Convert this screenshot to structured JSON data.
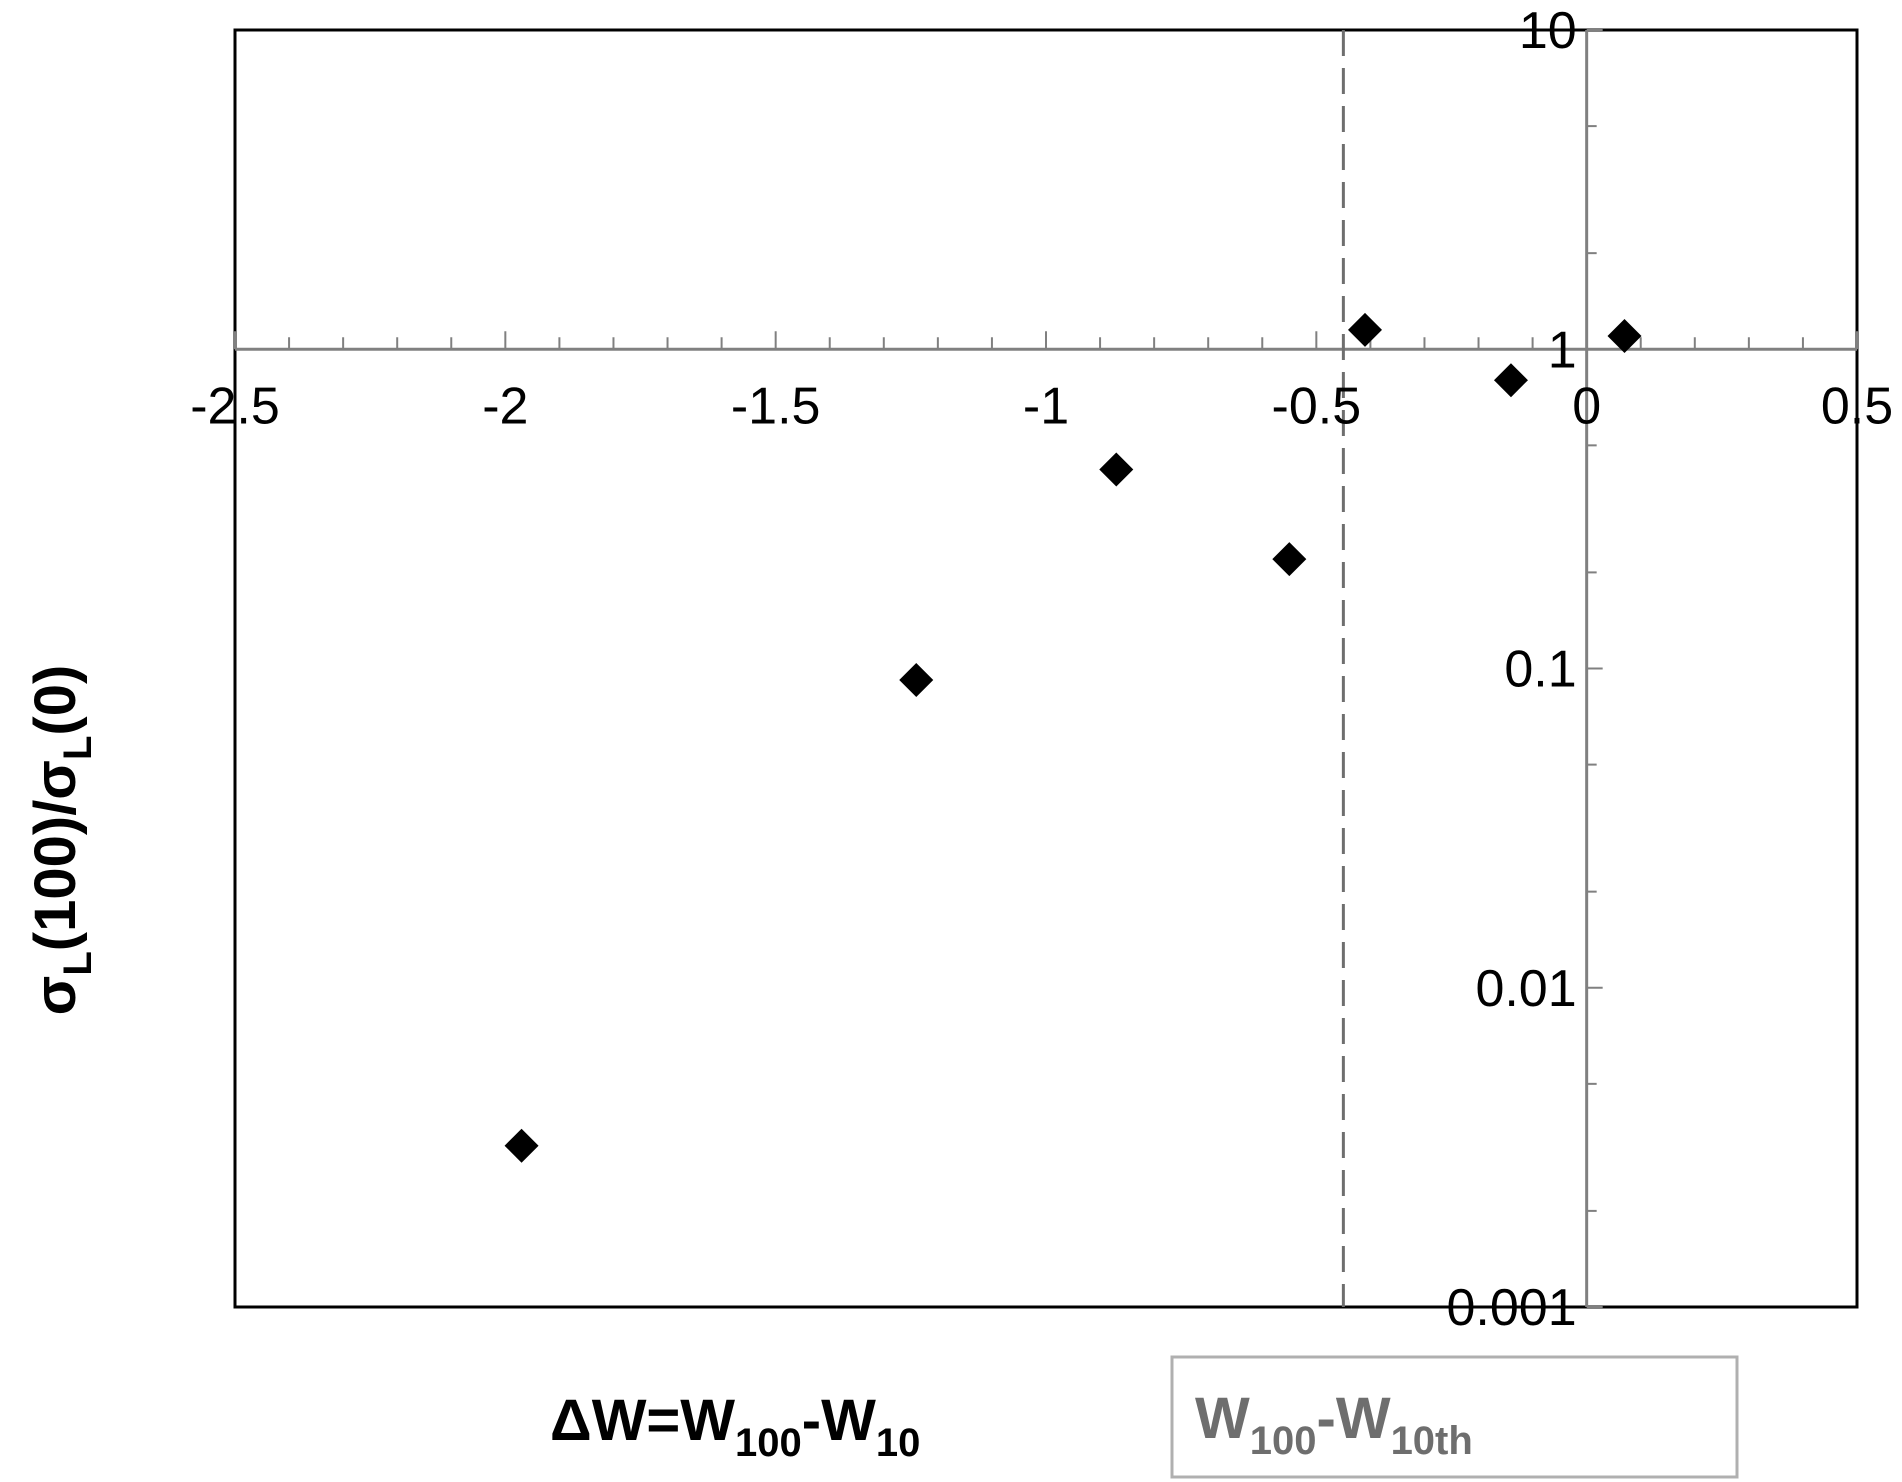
{
  "chart_data": {
    "type": "scatter",
    "title": "",
    "x_axis": {
      "label_parts": [
        {
          "text": "ΔW=W",
          "sub": false
        },
        {
          "text": "100",
          "sub": true
        },
        {
          "text": "-W",
          "sub": false
        },
        {
          "text": "10",
          "sub": true
        }
      ],
      "range": [
        -2.5,
        0.5
      ],
      "ticks": [
        -2.5,
        -2,
        -1.5,
        -1,
        -0.5,
        0,
        0.5
      ],
      "tick_labels": [
        "-2.5",
        "-2",
        "-1.5",
        "-1",
        "-0.5",
        "0",
        "0.5"
      ],
      "minor_step": 0.1,
      "crosses_y_at": 1
    },
    "y_axis": {
      "label_parts": [
        {
          "text": "σ",
          "sub": false
        },
        {
          "text": "L",
          "sub": true
        },
        {
          "text": "(100)/σ",
          "sub": false
        },
        {
          "text": "L",
          "sub": true
        },
        {
          "text": "(0)",
          "sub": false
        }
      ],
      "scale": "log",
      "range": [
        0.001,
        10
      ],
      "ticks": [
        10,
        1,
        0.1,
        0.01,
        0.001
      ],
      "tick_labels": [
        "10",
        "1",
        "0.1",
        "0.01",
        "0.001"
      ],
      "crosses_x_at": 0
    },
    "reference_line": {
      "x": -0.45,
      "style": "dashed",
      "legend_parts": [
        {
          "text": "W",
          "sub": false
        },
        {
          "text": "100",
          "sub": true
        },
        {
          "text": "-W",
          "sub": false
        },
        {
          "text": "10th",
          "sub": true
        }
      ]
    },
    "series": [
      {
        "marker": "diamond",
        "color": "#000000",
        "points": [
          {
            "x": -1.97,
            "y": 0.0032
          },
          {
            "x": -1.24,
            "y": 0.092
          },
          {
            "x": -0.87,
            "y": 0.42
          },
          {
            "x": -0.55,
            "y": 0.22
          },
          {
            "x": -0.41,
            "y": 1.15
          },
          {
            "x": -0.14,
            "y": 0.8
          },
          {
            "x": 0.07,
            "y": 1.1
          }
        ]
      }
    ],
    "grid": false,
    "colors": {
      "frame": "#000000",
      "axis_lines": "#808080",
      "reference_line": "#6e6e6e",
      "legend_text": "#6e6e6e",
      "legend_border": "#b0b0b0",
      "markers": "#000000"
    }
  }
}
